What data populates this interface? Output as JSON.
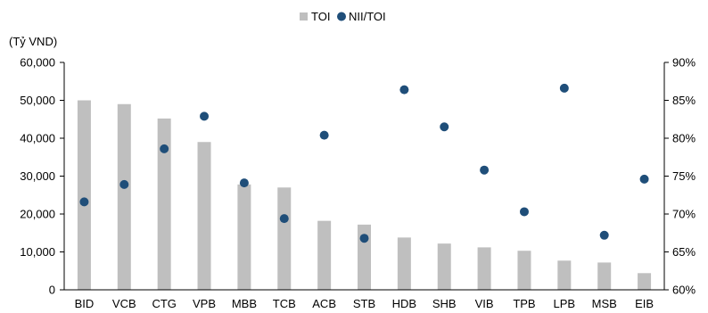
{
  "chart_data": {
    "type": "bar",
    "unit_label": "(Tỷ VND)",
    "legend": [
      {
        "label": "TOI",
        "marker": "square",
        "color": "#bfbfbf"
      },
      {
        "label": "NII/TOI",
        "marker": "circle",
        "color": "#1f4e79"
      }
    ],
    "legend_position": "top-center",
    "categories": [
      "BID",
      "VCB",
      "CTG",
      "VPB",
      "MBB",
      "TCB",
      "ACB",
      "STB",
      "HDB",
      "SHB",
      "VIB",
      "TPB",
      "LPB",
      "MSB",
      "EIB"
    ],
    "series": [
      {
        "name": "TOI",
        "type": "bar",
        "axis": "left",
        "color": "#bfbfbf",
        "values": [
          50000,
          49000,
          45200,
          39000,
          27800,
          27000,
          18200,
          17200,
          13800,
          12200,
          11200,
          10300,
          7700,
          7200,
          4400
        ]
      },
      {
        "name": "NII/TOI",
        "type": "scatter",
        "axis": "right",
        "color": "#1f4e79",
        "values": [
          71.6,
          73.9,
          78.6,
          82.9,
          74.1,
          69.4,
          80.4,
          66.8,
          86.4,
          81.5,
          75.8,
          70.3,
          86.6,
          67.2,
          74.6
        ]
      }
    ],
    "y_left": {
      "min": 0,
      "max": 60000,
      "ticks": [
        "0",
        "10,000",
        "20,000",
        "30,000",
        "40,000",
        "50,000",
        "60,000"
      ]
    },
    "y_right": {
      "min": 60,
      "max": 90,
      "ticks": [
        "60%",
        "65%",
        "70%",
        "75%",
        "80%",
        "85%",
        "90%"
      ]
    },
    "grid": false
  }
}
